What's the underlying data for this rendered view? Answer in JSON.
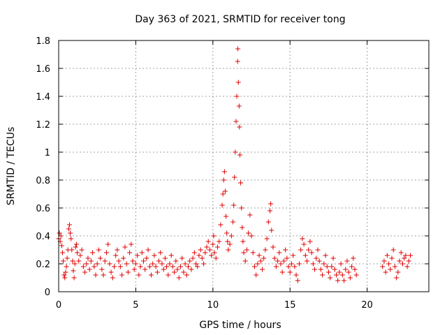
{
  "chart_data": {
    "type": "scatter",
    "title": "Day 363 of 2021, SRMTID for receiver tong",
    "xlabel": "GPS time / hours",
    "ylabel": "SRMTID / TECUs",
    "xlim": [
      0,
      24
    ],
    "ylim": [
      0,
      1.8
    ],
    "xticks": [
      0,
      5,
      10,
      15,
      20
    ],
    "yticks": [
      0,
      0.2,
      0.4,
      0.6,
      0.8,
      1,
      1.2,
      1.4,
      1.6,
      1.8
    ],
    "xtick_labels": [
      "0",
      "5",
      "10",
      "15",
      "20"
    ],
    "ytick_labels": [
      "0",
      "0.2",
      "0.4",
      "0.6",
      "0.8",
      "1",
      "1.2",
      "1.4",
      "1.6",
      "1.8"
    ],
    "grid": true,
    "marker": "+",
    "color": "#e00000",
    "series": [
      {
        "name": "SRMTID",
        "points": [
          [
            0.0,
            0.38
          ],
          [
            0.05,
            0.42
          ],
          [
            0.1,
            0.36
          ],
          [
            0.15,
            0.4
          ],
          [
            0.2,
            0.33
          ],
          [
            0.25,
            0.28
          ],
          [
            0.3,
            0.22
          ],
          [
            0.35,
            0.12
          ],
          [
            0.4,
            0.1
          ],
          [
            0.45,
            0.14
          ],
          [
            0.5,
            0.18
          ],
          [
            0.55,
            0.24
          ],
          [
            0.6,
            0.3
          ],
          [
            0.65,
            0.45
          ],
          [
            0.7,
            0.48
          ],
          [
            0.75,
            0.42
          ],
          [
            0.8,
            0.38
          ],
          [
            0.85,
            0.3
          ],
          [
            0.9,
            0.22
          ],
          [
            0.95,
            0.15
          ],
          [
            1.0,
            0.1
          ],
          [
            1.05,
            0.2
          ],
          [
            1.1,
            0.32
          ],
          [
            1.15,
            0.34
          ],
          [
            1.2,
            0.28
          ],
          [
            1.3,
            0.22
          ],
          [
            1.4,
            0.26
          ],
          [
            1.5,
            0.3
          ],
          [
            1.6,
            0.18
          ],
          [
            1.7,
            0.14
          ],
          [
            1.8,
            0.2
          ],
          [
            1.9,
            0.24
          ],
          [
            2.0,
            0.16
          ],
          [
            2.1,
            0.22
          ],
          [
            2.2,
            0.28
          ],
          [
            2.3,
            0.18
          ],
          [
            2.4,
            0.12
          ],
          [
            2.5,
            0.2
          ],
          [
            2.6,
            0.3
          ],
          [
            2.7,
            0.24
          ],
          [
            2.8,
            0.16
          ],
          [
            2.9,
            0.12
          ],
          [
            3.0,
            0.22
          ],
          [
            3.1,
            0.28
          ],
          [
            3.2,
            0.34
          ],
          [
            3.3,
            0.2
          ],
          [
            3.4,
            0.14
          ],
          [
            3.5,
            0.1
          ],
          [
            3.6,
            0.18
          ],
          [
            3.7,
            0.26
          ],
          [
            3.8,
            0.3
          ],
          [
            3.9,
            0.22
          ],
          [
            4.0,
            0.18
          ],
          [
            4.1,
            0.12
          ],
          [
            4.2,
            0.24
          ],
          [
            4.3,
            0.32
          ],
          [
            4.4,
            0.2
          ],
          [
            4.5,
            0.14
          ],
          [
            4.6,
            0.28
          ],
          [
            4.7,
            0.34
          ],
          [
            4.8,
            0.22
          ],
          [
            4.9,
            0.16
          ],
          [
            5.0,
            0.2
          ],
          [
            5.1,
            0.26
          ],
          [
            5.2,
            0.12
          ],
          [
            5.3,
            0.18
          ],
          [
            5.4,
            0.28
          ],
          [
            5.5,
            0.22
          ],
          [
            5.6,
            0.16
          ],
          [
            5.7,
            0.24
          ],
          [
            5.8,
            0.3
          ],
          [
            5.9,
            0.18
          ],
          [
            6.0,
            0.12
          ],
          [
            6.1,
            0.2
          ],
          [
            6.2,
            0.26
          ],
          [
            6.3,
            0.18
          ],
          [
            6.4,
            0.14
          ],
          [
            6.5,
            0.22
          ],
          [
            6.6,
            0.28
          ],
          [
            6.7,
            0.2
          ],
          [
            6.8,
            0.16
          ],
          [
            6.9,
            0.24
          ],
          [
            7.0,
            0.18
          ],
          [
            7.1,
            0.12
          ],
          [
            7.2,
            0.2
          ],
          [
            7.3,
            0.26
          ],
          [
            7.4,
            0.18
          ],
          [
            7.5,
            0.14
          ],
          [
            7.6,
            0.22
          ],
          [
            7.7,
            0.16
          ],
          [
            7.8,
            0.1
          ],
          [
            7.9,
            0.18
          ],
          [
            8.0,
            0.24
          ],
          [
            8.1,
            0.14
          ],
          [
            8.2,
            0.2
          ],
          [
            8.3,
            0.12
          ],
          [
            8.4,
            0.18
          ],
          [
            8.5,
            0.22
          ],
          [
            8.6,
            0.16
          ],
          [
            8.7,
            0.24
          ],
          [
            8.8,
            0.28
          ],
          [
            8.9,
            0.2
          ],
          [
            9.0,
            0.18
          ],
          [
            9.1,
            0.26
          ],
          [
            9.2,
            0.3
          ],
          [
            9.3,
            0.24
          ],
          [
            9.4,
            0.2
          ],
          [
            9.5,
            0.28
          ],
          [
            9.6,
            0.32
          ],
          [
            9.7,
            0.36
          ],
          [
            9.8,
            0.3
          ],
          [
            9.9,
            0.26
          ],
          [
            10.0,
            0.34
          ],
          [
            10.05,
            0.4
          ],
          [
            10.1,
            0.28
          ],
          [
            10.2,
            0.24
          ],
          [
            10.3,
            0.32
          ],
          [
            10.4,
            0.36
          ],
          [
            10.5,
            0.48
          ],
          [
            10.6,
            0.62
          ],
          [
            10.65,
            0.7
          ],
          [
            10.7,
            0.8
          ],
          [
            10.75,
            0.86
          ],
          [
            10.8,
            0.72
          ],
          [
            10.85,
            0.54
          ],
          [
            10.9,
            0.42
          ],
          [
            10.95,
            0.36
          ],
          [
            11.0,
            0.3
          ],
          [
            11.1,
            0.34
          ],
          [
            11.2,
            0.4
          ],
          [
            11.3,
            0.5
          ],
          [
            11.35,
            0.62
          ],
          [
            11.4,
            0.82
          ],
          [
            11.45,
            1.0
          ],
          [
            11.5,
            1.22
          ],
          [
            11.55,
            1.4
          ],
          [
            11.6,
            1.65
          ],
          [
            11.62,
            1.74
          ],
          [
            11.65,
            1.5
          ],
          [
            11.7,
            1.33
          ],
          [
            11.72,
            1.18
          ],
          [
            11.75,
            0.98
          ],
          [
            11.8,
            0.78
          ],
          [
            11.85,
            0.6
          ],
          [
            11.9,
            0.46
          ],
          [
            11.95,
            0.36
          ],
          [
            12.0,
            0.28
          ],
          [
            12.1,
            0.22
          ],
          [
            12.2,
            0.3
          ],
          [
            12.3,
            0.42
          ],
          [
            12.4,
            0.55
          ],
          [
            12.5,
            0.4
          ],
          [
            12.6,
            0.28
          ],
          [
            12.7,
            0.18
          ],
          [
            12.8,
            0.12
          ],
          [
            12.9,
            0.2
          ],
          [
            13.0,
            0.26
          ],
          [
            13.1,
            0.22
          ],
          [
            13.2,
            0.16
          ],
          [
            13.3,
            0.24
          ],
          [
            13.4,
            0.3
          ],
          [
            13.5,
            0.38
          ],
          [
            13.6,
            0.5
          ],
          [
            13.7,
            0.58
          ],
          [
            13.75,
            0.63
          ],
          [
            13.8,
            0.44
          ],
          [
            13.9,
            0.32
          ],
          [
            14.0,
            0.24
          ],
          [
            14.1,
            0.18
          ],
          [
            14.2,
            0.22
          ],
          [
            14.3,
            0.28
          ],
          [
            14.4,
            0.2
          ],
          [
            14.5,
            0.14
          ],
          [
            14.6,
            0.22
          ],
          [
            14.7,
            0.3
          ],
          [
            14.8,
            0.24
          ],
          [
            14.9,
            0.18
          ],
          [
            15.0,
            0.14
          ],
          [
            15.1,
            0.2
          ],
          [
            15.2,
            0.26
          ],
          [
            15.3,
            0.18
          ],
          [
            15.4,
            0.12
          ],
          [
            15.5,
            0.08
          ],
          [
            15.6,
            0.2
          ],
          [
            15.7,
            0.3
          ],
          [
            15.8,
            0.38
          ],
          [
            15.9,
            0.34
          ],
          [
            16.0,
            0.26
          ],
          [
            16.1,
            0.22
          ],
          [
            16.2,
            0.3
          ],
          [
            16.3,
            0.36
          ],
          [
            16.4,
            0.28
          ],
          [
            16.5,
            0.2
          ],
          [
            16.6,
            0.16
          ],
          [
            16.7,
            0.24
          ],
          [
            16.8,
            0.3
          ],
          [
            16.9,
            0.22
          ],
          [
            17.0,
            0.16
          ],
          [
            17.1,
            0.12
          ],
          [
            17.2,
            0.2
          ],
          [
            17.3,
            0.26
          ],
          [
            17.4,
            0.18
          ],
          [
            17.5,
            0.14
          ],
          [
            17.6,
            0.1
          ],
          [
            17.7,
            0.18
          ],
          [
            17.8,
            0.24
          ],
          [
            17.9,
            0.16
          ],
          [
            18.0,
            0.12
          ],
          [
            18.1,
            0.08
          ],
          [
            18.2,
            0.14
          ],
          [
            18.3,
            0.2
          ],
          [
            18.4,
            0.12
          ],
          [
            18.5,
            0.08
          ],
          [
            18.6,
            0.16
          ],
          [
            18.7,
            0.22
          ],
          [
            18.8,
            0.14
          ],
          [
            18.9,
            0.1
          ],
          [
            19.0,
            0.18
          ],
          [
            19.1,
            0.24
          ],
          [
            19.2,
            0.16
          ],
          [
            19.3,
            0.12
          ],
          [
            21.0,
            0.18
          ],
          [
            21.1,
            0.22
          ],
          [
            21.2,
            0.14
          ],
          [
            21.3,
            0.26
          ],
          [
            21.4,
            0.2
          ],
          [
            21.5,
            0.16
          ],
          [
            21.6,
            0.24
          ],
          [
            21.7,
            0.3
          ],
          [
            21.8,
            0.18
          ],
          [
            21.9,
            0.1
          ],
          [
            22.0,
            0.14
          ],
          [
            22.1,
            0.22
          ],
          [
            22.2,
            0.28
          ],
          [
            22.3,
            0.2
          ],
          [
            22.4,
            0.24
          ],
          [
            22.5,
            0.26
          ],
          [
            22.6,
            0.18
          ],
          [
            22.7,
            0.22
          ],
          [
            22.8,
            0.26
          ]
        ]
      }
    ]
  }
}
